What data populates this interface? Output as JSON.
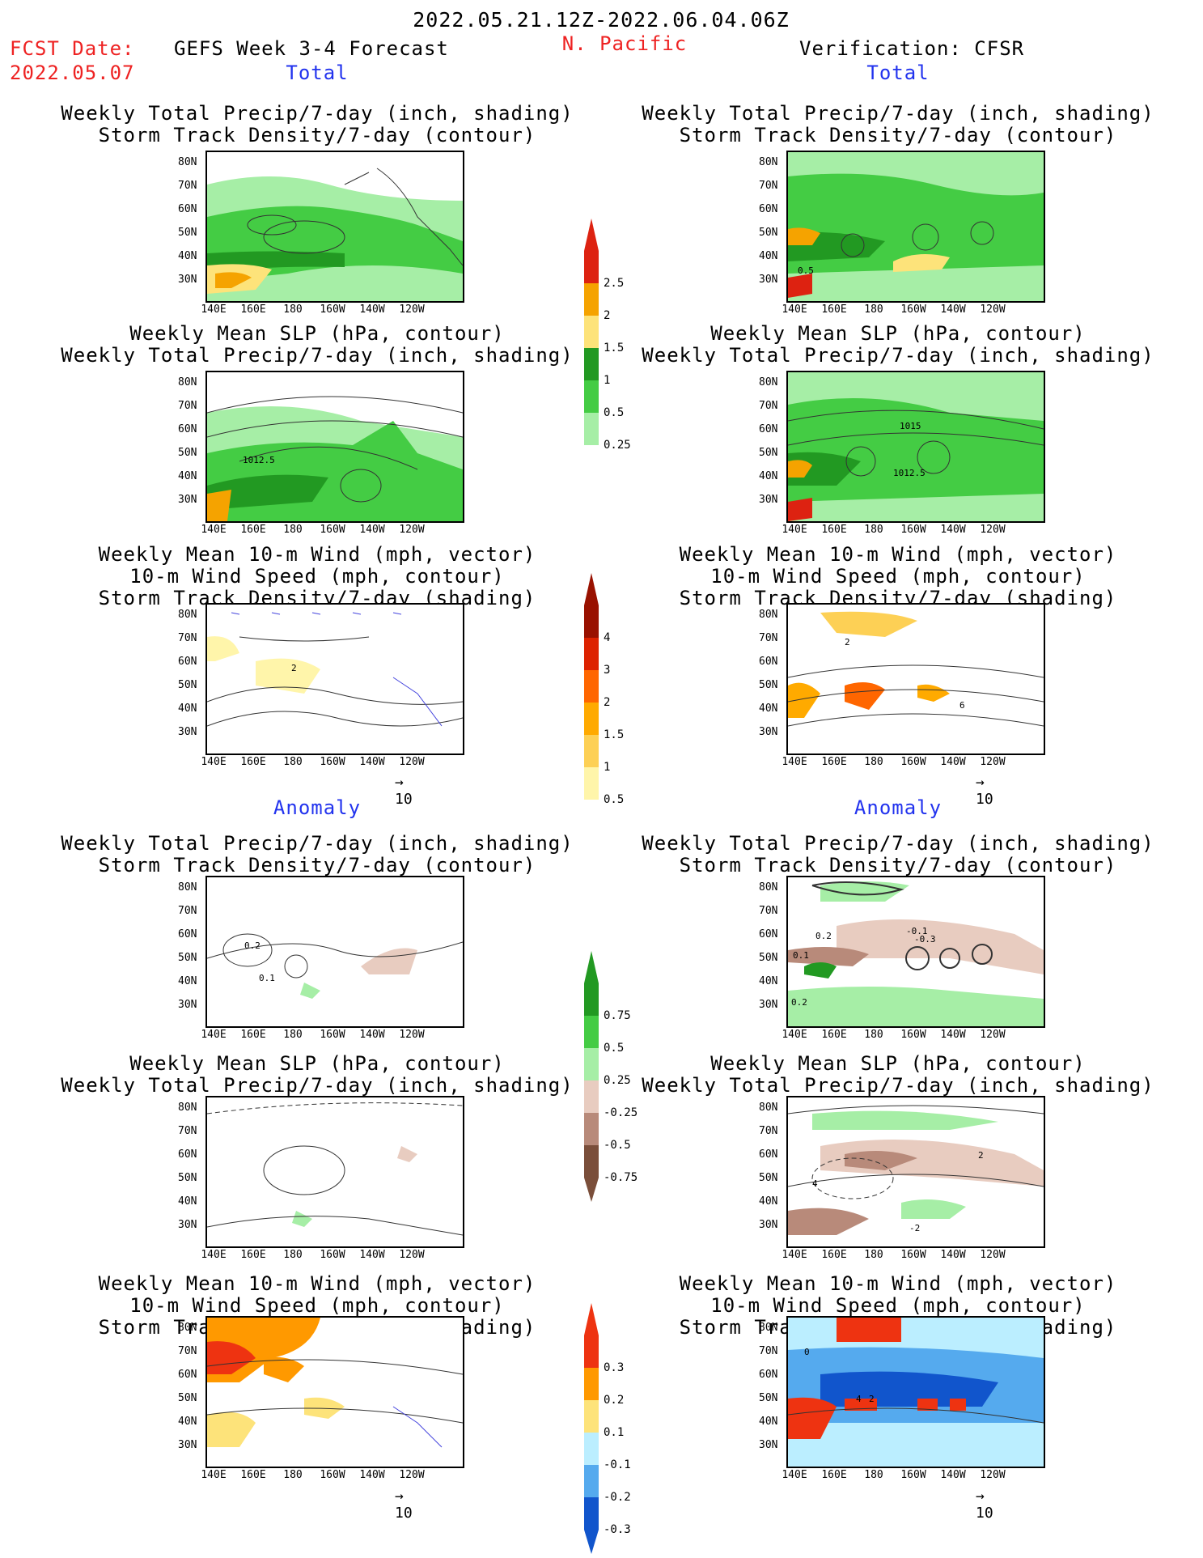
{
  "header": {
    "period": "2022.05.21.12Z-2022.06.04.06Z",
    "fcst_label": "FCST Date:",
    "fcst_date": "2022.05.07",
    "left_title": "GEFS Week 3-4 Forecast",
    "region": "N. Pacific",
    "right_title": "Verification: CFSR"
  },
  "sections": {
    "total": "Total",
    "anomaly": "Anomaly"
  },
  "panel_titles": {
    "precip_track": [
      "Weekly Total Precip/7-day (inch, shading)",
      "Storm Track Density/7-day (contour)"
    ],
    "slp_precip": [
      "Weekly Mean SLP (hPa, contour)",
      "Weekly Total Precip/7-day (inch, shading)"
    ],
    "wind_track": [
      "Weekly Mean 10-m Wind (mph, vector)",
      "10-m Wind Speed (mph, contour)",
      "Storm Track Density/7-day (shading)"
    ]
  },
  "axes": {
    "lat_ticks": [
      "80N",
      "70N",
      "60N",
      "50N",
      "40N",
      "30N"
    ],
    "lon_ticks": [
      "140E",
      "160E",
      "180",
      "160W",
      "140W",
      "120W"
    ]
  },
  "vector_ref": "10",
  "map_labels": {
    "fc_total_slp": "1012.5",
    "ob_total_track": "0.5",
    "ob_total_slp_a": "1015",
    "ob_total_slp_b": "1012.5",
    "fc_total_wind": "2",
    "ob_total_wind_a": "2",
    "ob_total_wind_b": "6",
    "fc_anom_track_a": "0.2",
    "fc_anom_track_b": "0.1",
    "ob_anom_track_a": "-0.1",
    "ob_anom_track_b": "-0.3",
    "ob_anom_track_c": "0.2",
    "ob_anom_track_d": "0.1",
    "ob_anom_track_e": "0.2",
    "ob_anom_slp_a": "4",
    "ob_anom_slp_b": "-2",
    "ob_anom_slp_c": "2",
    "ob_anom_wind_a": "0",
    "ob_anom_wind_b": "4",
    "ob_anom_wind_c": "2"
  },
  "colorbars": {
    "precip_total": {
      "labels": [
        "2.5",
        "2",
        "1.5",
        "1",
        "0.5",
        "0.25"
      ],
      "colors": [
        "#dd2211",
        "#f5a300",
        "#fde37a",
        "#229922",
        "#44cc44",
        "#a6eea6"
      ]
    },
    "track_total": {
      "labels": [
        "4",
        "3",
        "2",
        "1.5",
        "1",
        "0.5"
      ],
      "colors": [
        "#991100",
        "#dd2200",
        "#ff6600",
        "#ffaa00",
        "#fdd055",
        "#fff5aa"
      ]
    },
    "precip_anom": {
      "labels": [
        "0.75",
        "0.5",
        "0.25",
        "-0.25",
        "-0.5",
        "-0.75"
      ],
      "colors": [
        "#229922",
        "#44cc44",
        "#a6eea6",
        "#e8ccc0",
        "#b88a7a",
        "#7a4e3a"
      ]
    },
    "track_anom": {
      "labels": [
        "0.3",
        "0.2",
        "0.1",
        "-0.1",
        "-0.2",
        "-0.3"
      ],
      "colors": [
        "#ee3311",
        "#ff9900",
        "#fde37a",
        "#bbeeff",
        "#55aaee",
        "#1155cc"
      ]
    }
  },
  "colors": {
    "title_red": "#ee2222",
    "title_blue": "#2233ee",
    "vector_blue": "#4444dd"
  }
}
